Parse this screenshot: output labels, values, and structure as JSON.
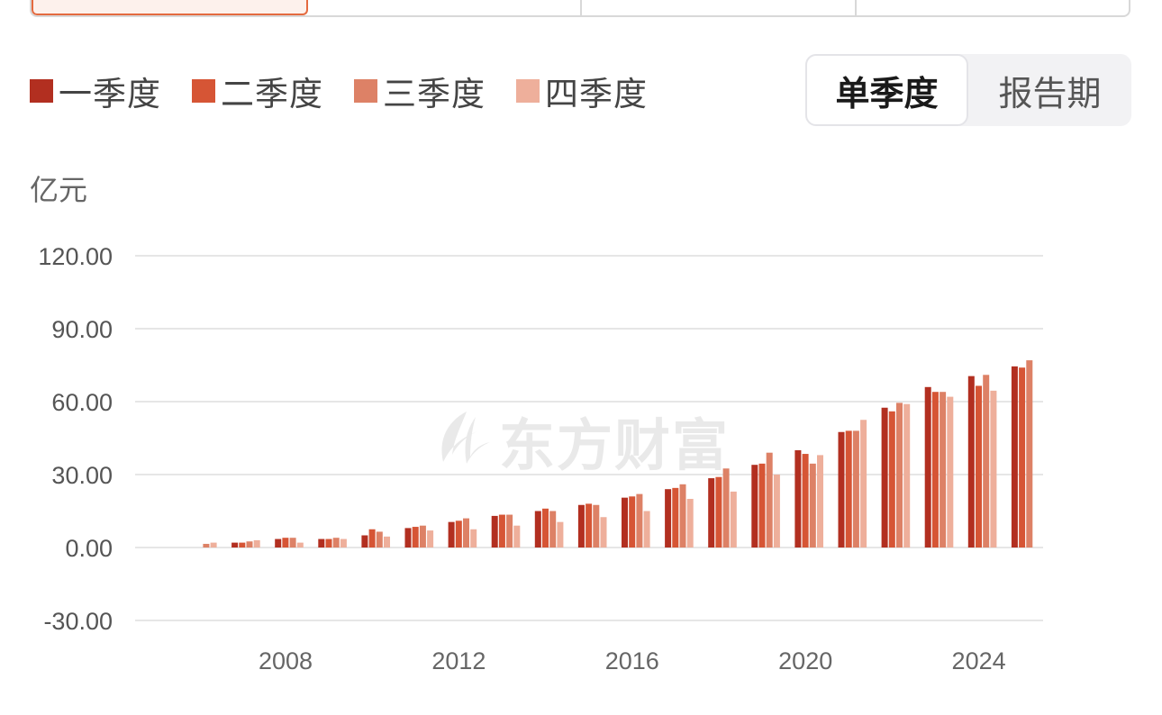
{
  "top_tabs": [
    "",
    "",
    "",
    ""
  ],
  "legend": [
    {
      "label": "一季度",
      "color": "#b22f20"
    },
    {
      "label": "二季度",
      "color": "#d65535"
    },
    {
      "label": "三季度",
      "color": "#dd8166"
    },
    {
      "label": "四季度",
      "color": "#eeaf9b"
    }
  ],
  "toggle": {
    "active_label": "单季度",
    "inactive_label": "报告期"
  },
  "unit": "亿元",
  "watermark": "东方财富",
  "chart_data": {
    "type": "bar",
    "ylabel": "亿元",
    "ylim": [
      -30,
      120
    ],
    "yticks": [
      "120.00",
      "90.00",
      "60.00",
      "30.00",
      "0.00",
      "-30.00"
    ],
    "ytick_values": [
      120,
      90,
      60,
      30,
      0,
      -30
    ],
    "xtick_labels": [
      "2008",
      "2012",
      "2016",
      "2020",
      "2024"
    ],
    "x": [
      2006,
      2007,
      2008,
      2009,
      2010,
      2011,
      2012,
      2013,
      2014,
      2015,
      2016,
      2017,
      2018,
      2019,
      2020,
      2021,
      2022,
      2023,
      2024,
      2025
    ],
    "grid": true,
    "series": [
      {
        "name": "一季度",
        "color": "#b22f20",
        "values": [
          null,
          2.0,
          3.5,
          3.5,
          5.0,
          8.0,
          10.5,
          13.0,
          15.0,
          17.5,
          20.5,
          24.0,
          28.5,
          34.0,
          40.0,
          47.5,
          57.5,
          66.0,
          70.5,
          74.5
        ]
      },
      {
        "name": "二季度",
        "color": "#d65535",
        "values": [
          null,
          2.0,
          4.0,
          3.5,
          7.5,
          8.5,
          11.0,
          13.5,
          16.0,
          18.0,
          21.0,
          24.5,
          29.0,
          34.5,
          38.5,
          48.0,
          56.0,
          64.0,
          66.5,
          74.0
        ]
      },
      {
        "name": "三季度",
        "color": "#dd8166",
        "values": [
          1.5,
          2.5,
          4.0,
          4.0,
          6.5,
          9.0,
          12.0,
          13.5,
          15.0,
          17.5,
          22.0,
          26.0,
          32.5,
          39.0,
          34.5,
          48.0,
          59.5,
          64.0,
          71.0,
          77.0
        ]
      },
      {
        "name": "四季度",
        "color": "#eeaf9b",
        "values": [
          2.0,
          3.0,
          2.0,
          3.5,
          4.5,
          7.0,
          7.5,
          9.0,
          10.5,
          12.5,
          15.0,
          20.0,
          23.0,
          30.0,
          38.0,
          52.5,
          59.0,
          62.0,
          64.5,
          null
        ]
      }
    ]
  }
}
